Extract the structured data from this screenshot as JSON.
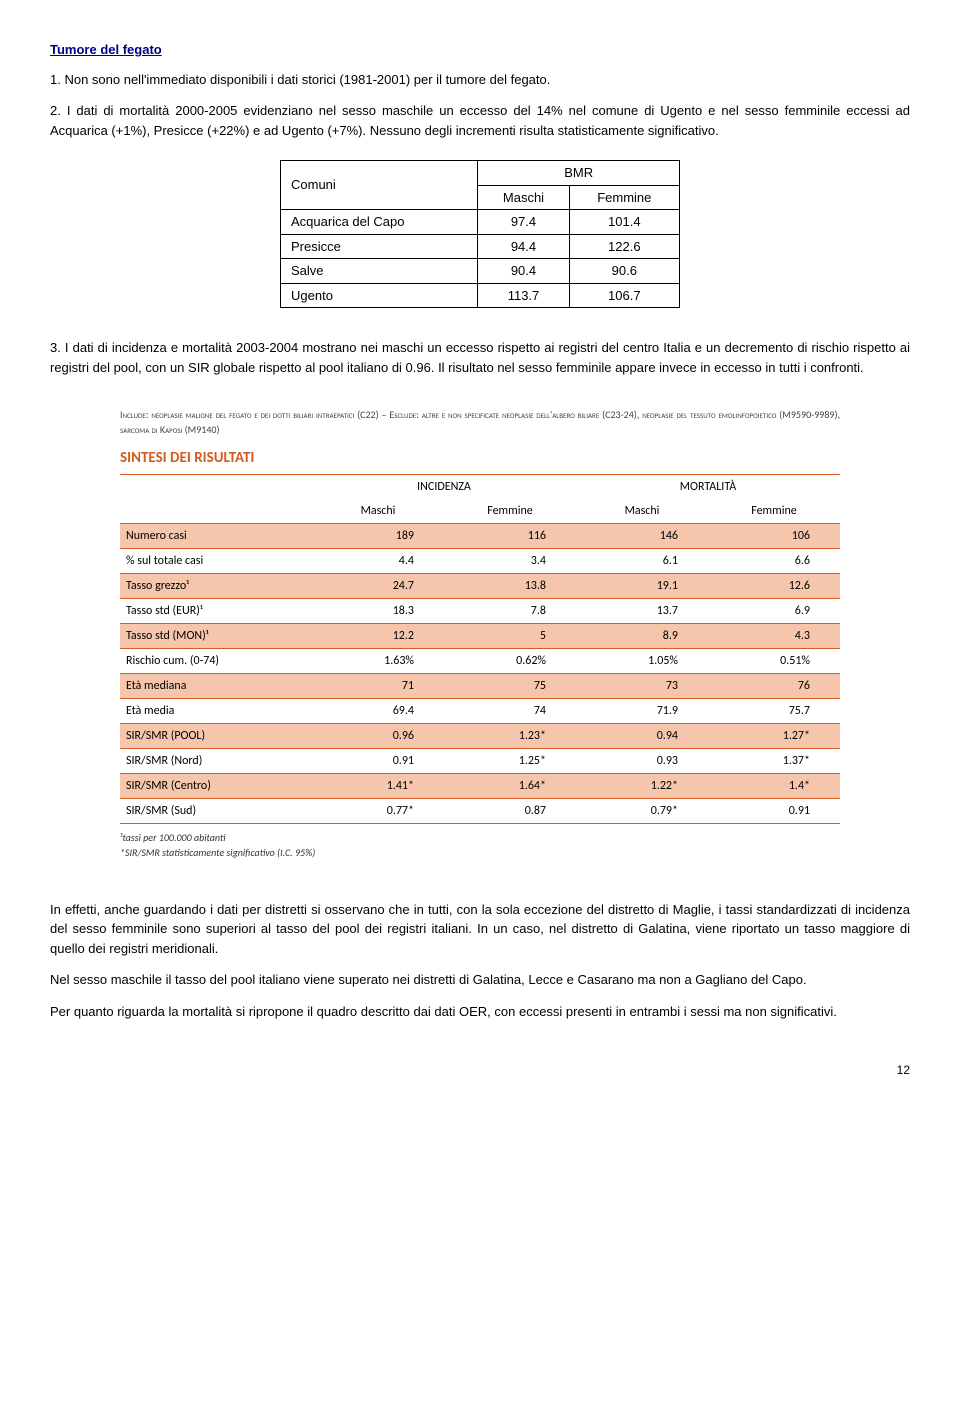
{
  "heading": "Tumore del fegato",
  "p1": "1. Non sono nell'immediato disponibili i dati storici (1981-2001) per il tumore del fegato.",
  "p2": "2. I dati di mortalità 2000-2005 evidenziano nel sesso maschile un eccesso del 14% nel comune di Ugento e nel sesso femminile eccessi ad Acquarica (+1%), Presicce (+22%) e ad Ugento (+7%). Nessuno degli incrementi risulta statisticamente significativo.",
  "bmr": {
    "col_comuni": "Comuni",
    "col_bmr": "BMR",
    "col_m": "Maschi",
    "col_f": "Femmine",
    "rows": [
      {
        "label": "Acquarica del Capo",
        "m": "97.4",
        "f": "101.4"
      },
      {
        "label": "Presicce",
        "m": "94.4",
        "f": "122.6"
      },
      {
        "label": "Salve",
        "m": "90.4",
        "f": "90.6"
      },
      {
        "label": "Ugento",
        "m": "113.7",
        "f": "106.7"
      }
    ]
  },
  "p3": "3. I dati di incidenza e mortalità 2003-2004 mostrano nei maschi un eccesso rispetto ai registri del centro Italia e un decremento di rischio rispetto ai registri del pool, con un SIR globale rispetto al pool italiano di 0.96. Il risultato nel sesso femminile appare invece in eccesso in tutti i confronti.",
  "caption": "Include: neoplasie maligne del fegato e dei dotti biliari intraepatici (C22) – Esclude: altre e non specificate neoplasie dell'albero biliare (C23-24), neoplasie del tessuto emolinfopoietico (M9590-9989), sarcoma di Kaposi (M9140)",
  "sintesi_title": "SINTESI DEI RISULTATI",
  "sintesi": {
    "group_inc": "INCIDENZA",
    "group_mor": "MORTALITÀ",
    "col_m": "Maschi",
    "col_f": "Femmine",
    "rows": [
      {
        "label": "Numero casi",
        "im": "189",
        "if": "116",
        "mm": "146",
        "mf": "106",
        "hl": true
      },
      {
        "label": "% sul totale casi",
        "im": "4.4",
        "if": "3.4",
        "mm": "6.1",
        "mf": "6.6",
        "hl": false
      },
      {
        "label": "Tasso grezzo¹",
        "im": "24.7",
        "if": "13.8",
        "mm": "19.1",
        "mf": "12.6",
        "hl": true
      },
      {
        "label": "Tasso std (EUR)¹",
        "im": "18.3",
        "if": "7.8",
        "mm": "13.7",
        "mf": "6.9",
        "hl": false
      },
      {
        "label": "Tasso std (MON)¹",
        "im": "12.2",
        "if": "5",
        "mm": "8.9",
        "mf": "4.3",
        "hl": true
      },
      {
        "label": "Rischio cum. (0-74)",
        "im": "1.63%",
        "if": "0.62%",
        "mm": "1.05%",
        "mf": "0.51%",
        "hl": false
      },
      {
        "label": "Età mediana",
        "im": "71",
        "if": "75",
        "mm": "73",
        "mf": "76",
        "hl": true
      },
      {
        "label": "Età media",
        "im": "69.4",
        "if": "74",
        "mm": "71.9",
        "mf": "75.7",
        "hl": false
      },
      {
        "label": "SIR/SMR (POOL)",
        "im": "0.96",
        "if": "1.23*",
        "mm": "0.94",
        "mf": "1.27*",
        "hl": true
      },
      {
        "label": "SIR/SMR (Nord)",
        "im": "0.91",
        "if": "1.25*",
        "mm": "0.93",
        "mf": "1.37*",
        "hl": false
      },
      {
        "label": "SIR/SMR (Centro)",
        "im": "1.41*",
        "if": "1.64*",
        "mm": "1.22*",
        "mf": "1.4*",
        "hl": true
      },
      {
        "label": "SIR/SMR (Sud)",
        "im": "0.77*",
        "if": "0.87",
        "mm": "0.79*",
        "mf": "0.91",
        "hl": false
      }
    ],
    "footnote1": "¹tassi per 100.000 abitanti",
    "footnote2": "*SIR/SMR statisticamente significativo (I.C. 95%)"
  },
  "p4": "In effetti, anche guardando i dati per distretti si osservano che in tutti, con la sola eccezione del distretto di Maglie, i tassi standardizzati di incidenza del sesso femminile sono superiori al tasso del pool dei registri italiani. In un caso, nel distretto di Galatina, viene riportato un tasso maggiore di quello dei registri meridionali.",
  "p5": "Nel sesso maschile il tasso del pool italiano viene superato nei distretti di Galatina, Lecce e Casarano ma non a Gagliano del Capo.",
  "p6": "Per quanto riguarda la mortalità si ripropone il quadro descritto dai dati OER, con eccessi presenti in entrambi i sessi ma non significativi.",
  "pagenum": "12",
  "colors": {
    "heading": "#000080",
    "accent": "#d45a1f",
    "row_highlight": "#f5c6ab"
  }
}
